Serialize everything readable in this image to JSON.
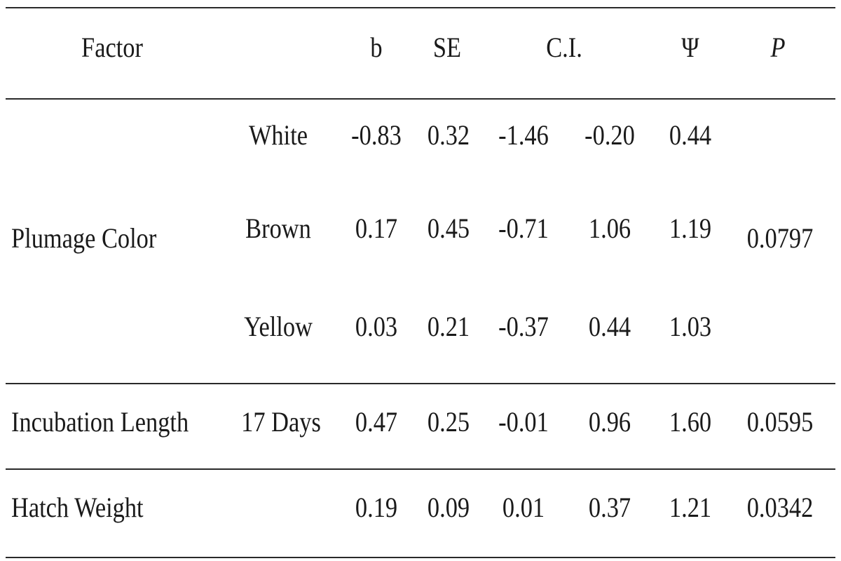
{
  "table": {
    "headers": {
      "factor": "Factor",
      "b": "b",
      "se": "SE",
      "ci": "C.I.",
      "psi": "Ψ",
      "p": "P"
    },
    "groups": [
      {
        "factor": "Plumage Color",
        "p": "0.0797",
        "rows": [
          {
            "level": "White",
            "b": "-0.83",
            "se": "0.32",
            "ci_low": "-1.46",
            "ci_high": "-0.20",
            "psi": "0.44"
          },
          {
            "level": "Brown",
            "b": "0.17",
            "se": "0.45",
            "ci_low": "-0.71",
            "ci_high": "1.06",
            "psi": "1.19"
          },
          {
            "level": "Yellow",
            "b": "0.03",
            "se": "0.21",
            "ci_low": "-0.37",
            "ci_high": "0.44",
            "psi": "1.03"
          }
        ]
      },
      {
        "factor": "Incubation Length",
        "p": "0.0595",
        "rows": [
          {
            "level": "17 Days",
            "b": "0.47",
            "se": "0.25",
            "ci_low": "-0.01",
            "ci_high": "0.96",
            "psi": "1.60"
          }
        ]
      },
      {
        "factor": "Hatch Weight",
        "p": "0.0342",
        "rows": [
          {
            "level": "",
            "b": "0.19",
            "se": "0.09",
            "ci_low": "0.01",
            "ci_high": "0.37",
            "psi": "1.21"
          }
        ]
      }
    ]
  }
}
